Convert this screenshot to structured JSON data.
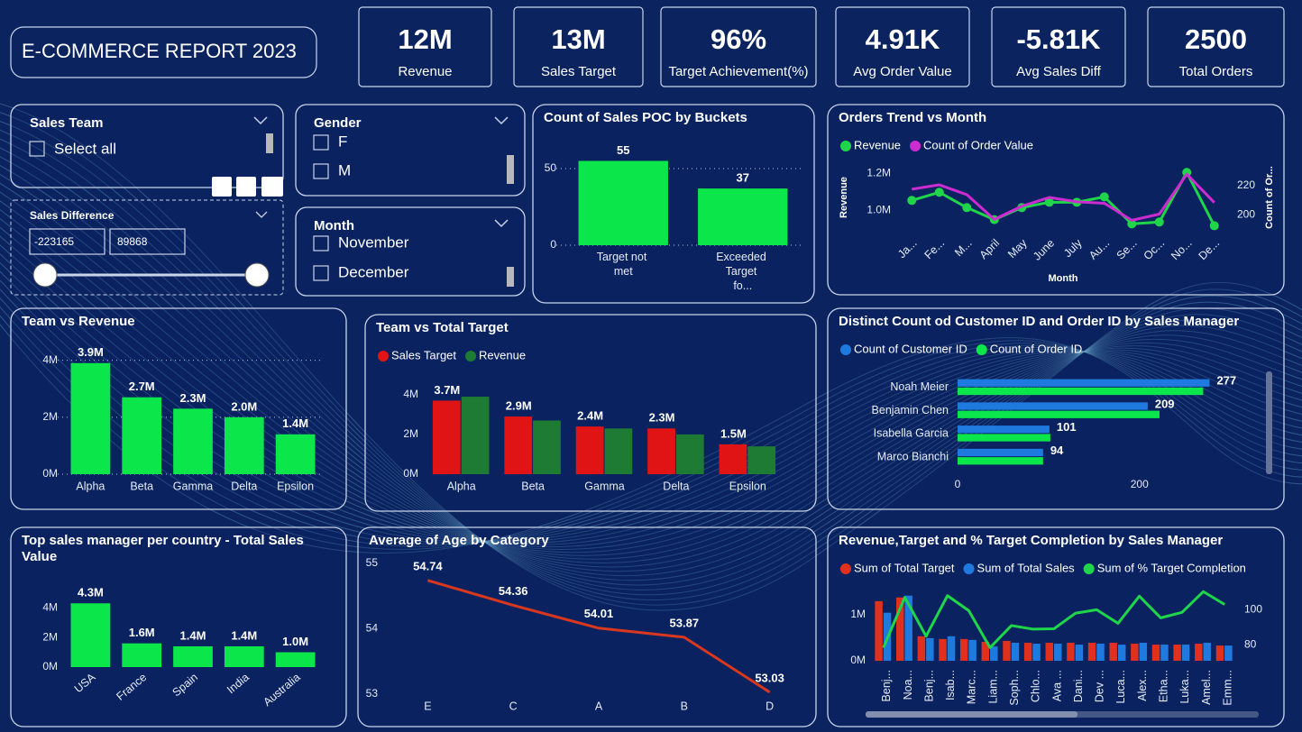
{
  "title": "E-COMMERCE REPORT 2023",
  "kpis": [
    {
      "value": "12M",
      "label": "Revenue"
    },
    {
      "value": "13M",
      "label": "Sales Target"
    },
    {
      "value": "96%",
      "label": "Target Achievement(%)"
    },
    {
      "value": "4.91K",
      "label": "Avg Order Value"
    },
    {
      "value": "-5.81K",
      "label": "Avg Sales Diff"
    },
    {
      "value": "2500",
      "label": "Total Orders"
    }
  ],
  "slicers": {
    "sales_team": {
      "title": "Sales Team",
      "items": [
        "Select all"
      ]
    },
    "sales_difference": {
      "title": "Sales Difference",
      "min": -223165,
      "max": 89868
    },
    "gender": {
      "title": "Gender",
      "items": [
        "F",
        "M"
      ]
    },
    "month": {
      "title": "Month",
      "items": [
        "November",
        "December"
      ]
    }
  },
  "chart_data": [
    {
      "type": "bar",
      "title": "Count of Sales POC by Buckets",
      "categories": [
        "Target not met",
        "Exceeded Target fo..."
      ],
      "values": [
        55,
        37
      ],
      "color": "#0be64a",
      "ylim": [
        0,
        60
      ],
      "yticks": [
        0,
        50
      ],
      "grid": true,
      "data_labels": true
    },
    {
      "type": "line",
      "title": "Orders Trend vs Month",
      "categories": [
        "Ja...",
        "Fe...",
        "M...",
        "April",
        "May",
        "June",
        "July",
        "Au...",
        "Se...",
        "Oc...",
        "No...",
        "De..."
      ],
      "series": [
        {
          "name": "Revenue",
          "color": "#1fd64a",
          "markers": true,
          "values": [
            1054000,
            1098000,
            1015000,
            950000,
            1015000,
            1044000,
            1044000,
            1073000,
            927000,
            937000,
            1205000,
            917000
          ]
        },
        {
          "name": "Count of Order Value",
          "color": "#cc2bd0",
          "axis": "y2",
          "values": [
            217.6,
            220.6,
            213.9,
            197,
            206,
            212,
            209,
            208,
            196.4,
            200.6,
            227.9,
            208.5
          ]
        }
      ],
      "ylim": [
        880000,
        1260000
      ],
      "yticks": [
        {
          "value": 1000000,
          "label": "1.0M"
        },
        {
          "value": 1200000,
          "label": "1.2M"
        }
      ],
      "y2lim": [
        188,
        236
      ],
      "y2ticks": [
        200,
        220
      ],
      "y_label": "Revenue",
      "y2_label": "Count of Or...",
      "x_label": "Month",
      "legend": true
    },
    {
      "type": "bar",
      "title": "Team vs Revenue",
      "categories": [
        "Alpha",
        "Beta",
        "Gamma",
        "Delta",
        "Epsilon"
      ],
      "values": [
        3900000,
        2700000,
        2300000,
        2000000,
        1400000
      ],
      "value_labels": [
        "3.9M",
        "2.7M",
        "2.3M",
        "2.0M",
        "1.4M"
      ],
      "color": "#0be64a",
      "ylim": [
        0,
        4400000
      ],
      "yticks": [
        {
          "value": 0,
          "label": "0M"
        },
        {
          "value": 2000000,
          "label": "2M"
        },
        {
          "value": 4000000,
          "label": "4M"
        }
      ],
      "grid": true
    },
    {
      "type": "bar",
      "title": "Team vs Total Target",
      "categories": [
        "Alpha",
        "Beta",
        "Gamma",
        "Delta",
        "Epsilon"
      ],
      "series": [
        {
          "name": "Sales Target",
          "color": "#e01414",
          "values": [
            3700000,
            2900000,
            2400000,
            2300000,
            1500000
          ],
          "value_labels": [
            "3.7M",
            "2.9M",
            "2.4M",
            "2.3M",
            "1.5M"
          ]
        },
        {
          "name": "Revenue",
          "color": "#1e7b34",
          "values": [
            3900000,
            2700000,
            2300000,
            2000000,
            1400000
          ]
        }
      ],
      "ylim": [
        0,
        4400000
      ],
      "yticks": [
        {
          "value": 0,
          "label": "0M"
        },
        {
          "value": 2000000,
          "label": "2M"
        },
        {
          "value": 4000000,
          "label": "4M"
        }
      ],
      "legend": true
    },
    {
      "type": "hbar",
      "title": "Distinct Count od Customer ID and Order ID by Sales Manager",
      "categories": [
        "Noah Meier",
        "Benjamin Chen",
        "Isabella Garcia",
        "Marco Bianchi"
      ],
      "series": [
        {
          "name": "Count of Customer ID",
          "color": "#1f7ae0",
          "values": [
            277,
            209,
            101,
            94
          ],
          "data_labels": true
        },
        {
          "name": "Count of Order ID",
          "color": "#0be64a",
          "values": [
            270,
            222,
            102,
            94
          ]
        }
      ],
      "xlim": [
        0,
        340
      ],
      "xticks": [
        0,
        200
      ],
      "legend": true
    },
    {
      "type": "bar",
      "title": "Top sales manager per country - Total Sales Value",
      "categories": [
        "USA",
        "France",
        "Spain",
        "India",
        "Australia"
      ],
      "values": [
        4300000,
        1600000,
        1400000,
        1400000,
        1000000
      ],
      "value_labels": [
        "4.3M",
        "1.6M",
        "1.4M",
        "1.4M",
        "1.0M"
      ],
      "color": "#0be64a",
      "ylim": [
        0,
        4800000
      ],
      "yticks": [
        {
          "value": 0,
          "label": "0M"
        },
        {
          "value": 2000000,
          "label": "2M"
        },
        {
          "value": 4000000,
          "label": "4M"
        }
      ]
    },
    {
      "type": "line",
      "title": "Average of Age by Category",
      "categories": [
        "E",
        "C",
        "A",
        "B",
        "D"
      ],
      "values": [
        54.74,
        54.36,
        54.01,
        53.87,
        53.03
      ],
      "color": "#d9381e",
      "ylim": [
        53,
        55
      ],
      "yticks": [
        53,
        54,
        55
      ],
      "data_labels": true
    },
    {
      "type": "combo",
      "title": "Revenue,Target and % Target Completion by Sales Manager",
      "categories": [
        "Benj...",
        "Noa...",
        "Benj...",
        "Isab...",
        "Marc...",
        "Liam...",
        "Soph...",
        "Chlo...",
        "Ava ...",
        "Dani...",
        "Dev ...",
        "Luca...",
        "Alex...",
        "Etha...",
        "Luka...",
        "Amel...",
        "Emm..."
      ],
      "series": [
        {
          "name": "Sum of Total Target",
          "color": "#e0301e",
          "values": [
            1290000,
            1370000,
            530000,
            470000,
            470000,
            410000,
            430000,
            390000,
            390000,
            390000,
            390000,
            390000,
            370000,
            350000,
            350000,
            370000,
            330000
          ]
        },
        {
          "name": "Sum of Total Sales",
          "color": "#1f7ae0",
          "values": [
            1040000,
            1410000,
            490000,
            530000,
            450000,
            310000,
            390000,
            370000,
            370000,
            350000,
            370000,
            350000,
            390000,
            350000,
            350000,
            390000,
            330000
          ]
        },
        {
          "name": "Sum of % Target Completion",
          "color": "#1fd64a",
          "axis": "y2",
          "values": [
            78.5,
            107,
            85,
            108,
            99.5,
            78.5,
            91,
            89,
            89.2,
            98,
            100,
            92.3,
            107.7,
            95.4,
            98.5,
            110.3,
            103
          ]
        }
      ],
      "ylim": [
        0,
        1600000
      ],
      "yticks": [
        {
          "value": 0,
          "label": "0M"
        },
        {
          "value": 1000000,
          "label": "1M"
        }
      ],
      "y2lim": [
        71,
        113
      ],
      "y2ticks": [
        80,
        100
      ],
      "legend": true
    }
  ]
}
